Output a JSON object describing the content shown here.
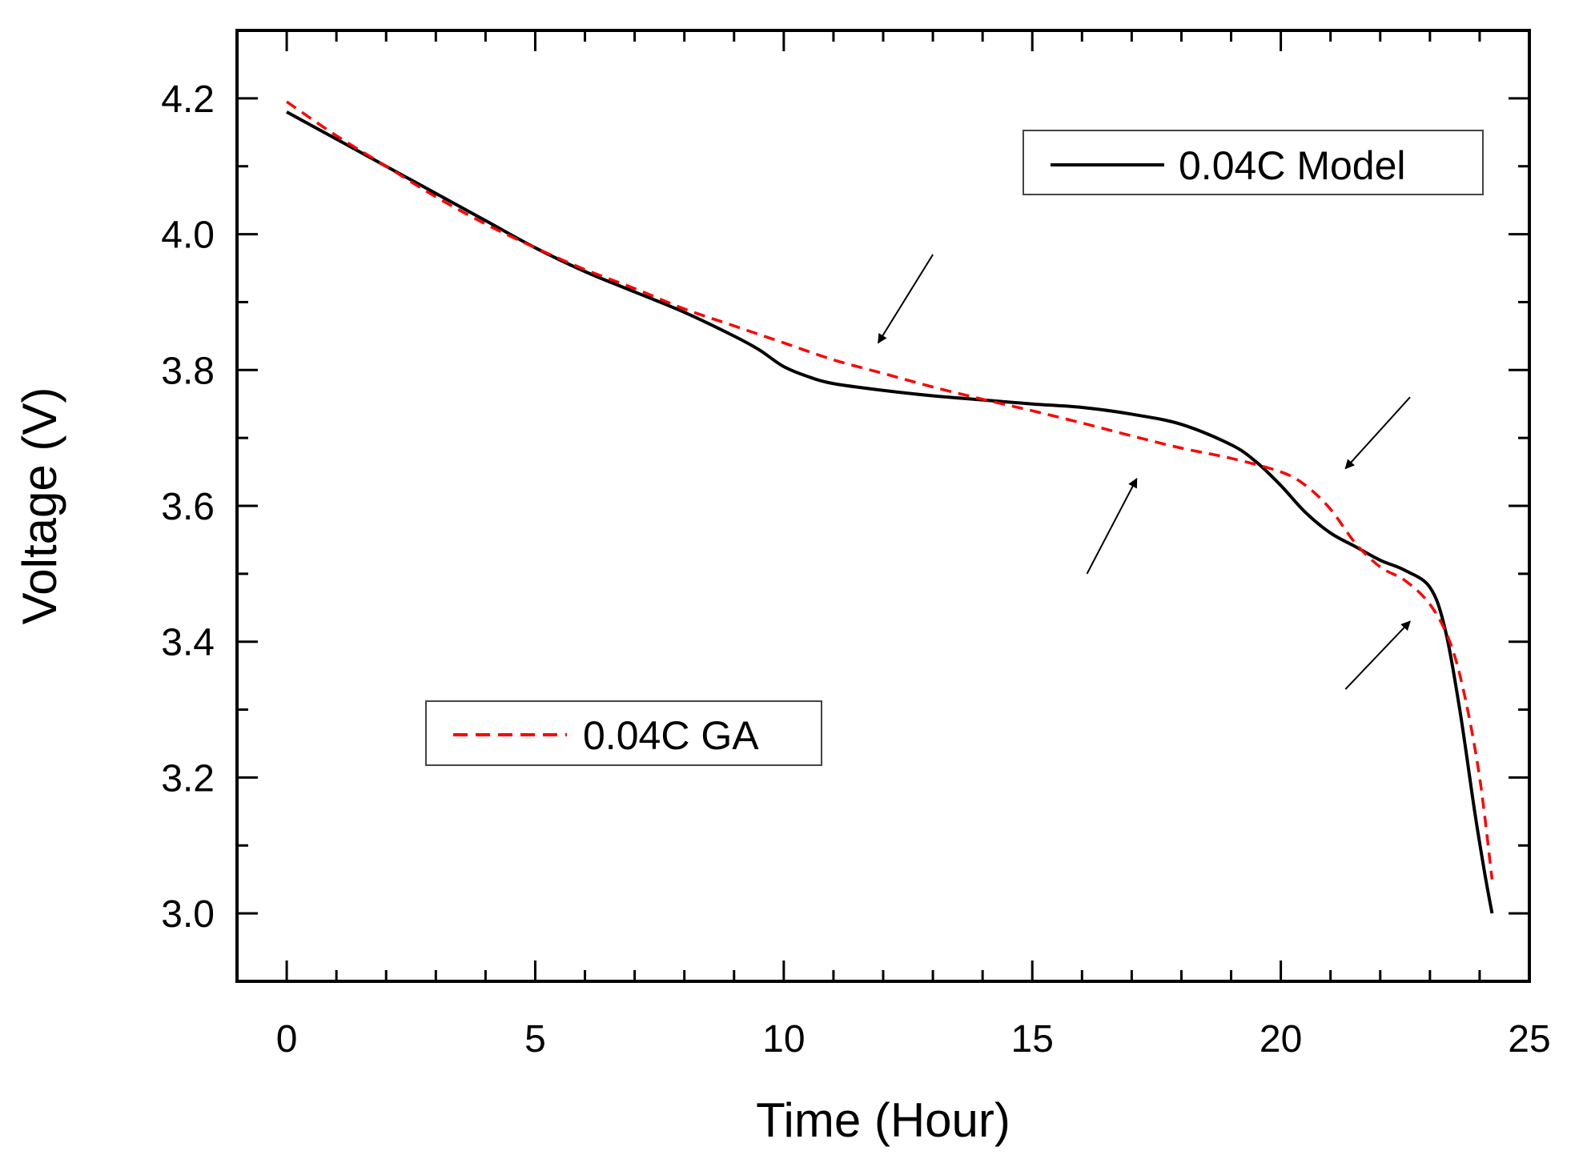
{
  "chart_data": {
    "type": "line",
    "xlabel": "Time (Hour)",
    "ylabel": "Voltage (V)",
    "xlim": [
      -1,
      25
    ],
    "ylim": [
      2.9,
      4.3
    ],
    "xticks": [
      0,
      5,
      10,
      15,
      20,
      25
    ],
    "xtick_labels": [
      "0",
      "5",
      "10",
      "15",
      "20",
      "25"
    ],
    "yticks": [
      3.0,
      3.2,
      3.4,
      3.6,
      3.8,
      4.0,
      4.2
    ],
    "ytick_labels": [
      "3.0",
      "3.2",
      "3.4",
      "3.6",
      "3.8",
      "4.0",
      "4.2"
    ],
    "x_minor_step": 1,
    "y_minor_step": 0.1,
    "grid": false,
    "series": [
      {
        "name": "0.04C Model",
        "color": "#000000",
        "style": "solid",
        "x": [
          0,
          1,
          2,
          3,
          4,
          5,
          6,
          7,
          8,
          9,
          9.5,
          10,
          10.5,
          11,
          12,
          13,
          14,
          15,
          16,
          17,
          18,
          19,
          19.5,
          20,
          20.5,
          21,
          21.5,
          22,
          22.5,
          23,
          23.3,
          23.6,
          23.9,
          24.1,
          24.25
        ],
        "y": [
          4.18,
          4.14,
          4.1,
          4.06,
          4.02,
          3.98,
          3.945,
          3.915,
          3.885,
          3.85,
          3.83,
          3.805,
          3.79,
          3.78,
          3.77,
          3.762,
          3.756,
          3.75,
          3.745,
          3.735,
          3.72,
          3.69,
          3.665,
          3.63,
          3.59,
          3.56,
          3.54,
          3.52,
          3.505,
          3.48,
          3.42,
          3.3,
          3.15,
          3.06,
          3.0
        ]
      },
      {
        "name": "0.04C GA",
        "color": "#ff0000",
        "style": "dashed",
        "x": [
          0,
          1,
          2,
          3,
          4,
          5,
          6,
          7,
          8,
          9,
          10,
          11,
          12,
          13,
          14,
          15,
          16,
          17,
          18,
          19,
          20,
          20.5,
          21,
          21.5,
          22,
          22.5,
          23,
          23.4,
          23.7,
          24,
          24.25
        ],
        "y": [
          4.195,
          4.145,
          4.1,
          4.055,
          4.015,
          3.98,
          3.948,
          3.92,
          3.89,
          3.865,
          3.84,
          3.815,
          3.795,
          3.775,
          3.757,
          3.74,
          3.722,
          3.703,
          3.685,
          3.67,
          3.65,
          3.63,
          3.595,
          3.545,
          3.51,
          3.49,
          3.455,
          3.4,
          3.32,
          3.2,
          3.05
        ]
      }
    ],
    "legend": [
      {
        "label": "0.04C Model",
        "placement": "top-right"
      },
      {
        "label": "0.04C GA",
        "placement": "lower-left"
      }
    ],
    "annotations": [
      {
        "type": "arrow",
        "from": [
          13,
          3.97
        ],
        "to": [
          11.9,
          3.84
        ]
      },
      {
        "type": "arrow",
        "from": [
          16.1,
          3.5
        ],
        "to": [
          17.1,
          3.64
        ]
      },
      {
        "type": "arrow",
        "from": [
          22.6,
          3.76
        ],
        "to": [
          21.3,
          3.655
        ]
      },
      {
        "type": "arrow",
        "from": [
          21.3,
          3.33
        ],
        "to": [
          22.6,
          3.43
        ]
      }
    ]
  }
}
